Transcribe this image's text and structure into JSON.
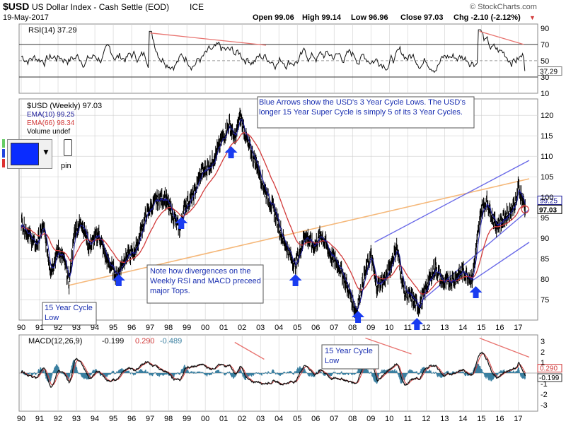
{
  "header": {
    "title_symbol": "$USD",
    "title_name": "US Dollar Index - Cash Settle (EOD)",
    "exchange": "ICE",
    "date": "19-May-2017",
    "open": "Open 99.06",
    "high": "High 99.14",
    "low": "Low 96.96",
    "close": "Close 97.03",
    "change": "Chg -2.10 (-2.12%)",
    "change_arrow": "▼",
    "brand": "© StockCharts.com"
  },
  "chart_data": [
    {
      "type": "line",
      "name": "rsi-panel",
      "legend": "RSI(14) 37.29",
      "ylim": [
        10,
        95
      ],
      "ticks": [
        90,
        70,
        50,
        30,
        10
      ],
      "reference_lines": [
        70,
        50,
        30
      ],
      "last_value": "37.29",
      "divergence_label": "RSI divergence lines at 1997–2002 and 2015–2017 tops"
    },
    {
      "type": "line",
      "name": "price-panel",
      "legend": [
        "$USD (Weekly) 97.03",
        "EMA(10) 99.25",
        "EMA(66) 98.34",
        "Volume undef"
      ],
      "series": [
        {
          "name": "$USD (Weekly)",
          "color": "#000000",
          "x": [
            1990.0,
            1990.8,
            1991.2,
            1991.6,
            1992.0,
            1992.3,
            1992.6,
            1992.9,
            1993.3,
            1993.7,
            1994.2,
            1994.7,
            1995.2,
            1995.6,
            1996.2,
            1996.8,
            1997.3,
            1997.8,
            1998.3,
            1998.6,
            1998.9,
            1999.3,
            1999.8,
            2000.3,
            2000.8,
            2001.3,
            2001.6,
            2001.9,
            2002.3,
            2002.8,
            2003.3,
            2003.8,
            2004.2,
            2004.9,
            2005.4,
            2005.9,
            2006.3,
            2006.8,
            2007.3,
            2007.8,
            2008.2,
            2008.6,
            2009.0,
            2009.3,
            2009.9,
            2010.4,
            2010.8,
            2011.3,
            2011.6,
            2012.1,
            2012.5,
            2012.9,
            2013.5,
            2014.0,
            2014.5,
            2015.0,
            2015.3,
            2015.8,
            2016.3,
            2016.9,
            2017.0,
            2017.4
          ],
          "values": [
            94,
            88,
            93,
            82,
            87,
            85,
            79,
            92,
            94,
            88,
            91,
            84,
            81,
            85,
            87,
            96,
            99,
            100,
            95,
            92,
            98,
            100,
            106,
            108,
            113,
            118,
            114,
            120,
            113,
            108,
            101,
            96,
            90,
            83,
            91,
            88,
            91,
            86,
            83,
            77,
            72,
            80,
            86,
            78,
            81,
            88,
            77,
            75,
            73,
            79,
            83,
            79,
            80,
            82,
            80,
            97,
            99,
            93,
            95,
            99,
            103,
            97.03
          ]
        },
        {
          "name": "EMA(10)",
          "color": "#1a1a99"
        },
        {
          "name": "EMA(66)",
          "color": "#d23b3b"
        }
      ],
      "ylim": [
        70,
        124
      ],
      "ticks": [
        120,
        115,
        110,
        105,
        100,
        95,
        90,
        85,
        80,
        75
      ],
      "last_price_tag": "97.03",
      "ema10_tag": "99.25",
      "cycle_lows_x": [
        1992.7,
        1995.3,
        1998.7,
        2001.4,
        2004.9,
        2008.3,
        2011.5,
        2014.7
      ]
    },
    {
      "type": "line",
      "name": "macd-panel",
      "legend_prefix": "MACD(12,26,9)",
      "macd_value": "-0.199",
      "signal_value": "0.290",
      "hist_value": "-0.489",
      "ylim": [
        -3.6,
        3.6
      ],
      "ticks": [
        "3",
        "2",
        "1",
        "-1",
        "-2",
        "-3"
      ],
      "macd_tag": "-0.199",
      "signal_tag": "0.290"
    }
  ],
  "x_axis": {
    "labels": [
      "90",
      "91",
      "92",
      "93",
      "94",
      "95",
      "96",
      "97",
      "98",
      "99",
      "00",
      "01",
      "02",
      "03",
      "04",
      "05",
      "06",
      "07",
      "08",
      "09",
      "10",
      "11",
      "12",
      "13",
      "14",
      "15",
      "16",
      "17"
    ]
  },
  "annotations": {
    "blue_arrows_note": "Blue Arrows show the USD's 3 Year Cycle Lows. The USD's longer 15 Year Super Cycle is simply 5 of its 3 Year Cycles.",
    "divergence_note": "Note how divergences on the Weekly RSI and MACD preceed major Tops.",
    "cycle_low_1": "15 Year Cycle Low",
    "cycle_low_2": "15 Year Cycle Low"
  },
  "widget": {
    "pin_label": "pin"
  },
  "colors": {
    "price": "#000000",
    "ema10": "#1a1a99",
    "ema66": "#d23b3b",
    "trend_orange": "#f5b87a",
    "channel_blue": "#6a6ae8",
    "arrow_blue": "#1a3cf0",
    "divergence_red": "#e8736f",
    "macd_hist": "#3a7fa0",
    "grid": "#cfcfcf"
  }
}
